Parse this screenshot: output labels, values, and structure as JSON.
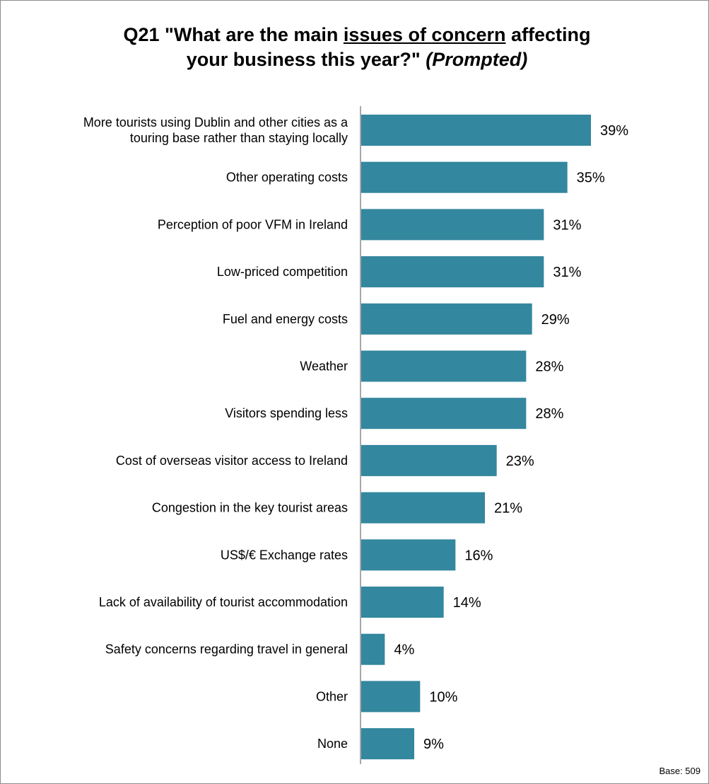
{
  "chart_data": {
    "type": "bar",
    "orientation": "horizontal",
    "title": {
      "part1": "Q21 \"What are the main ",
      "part2": "issues of concern",
      "part3": " affecting",
      "line2_plain": "your business this year?\" ",
      "line2_italic": "(Prompted)"
    },
    "bar_color": "#33879e",
    "xlim": [
      0,
      39
    ],
    "grid": false,
    "categories": [
      [
        "More tourists using Dublin and other cities as a",
        "touring base rather than staying locally"
      ],
      [
        "Other operating costs"
      ],
      [
        "Perception of poor VFM in Ireland"
      ],
      [
        "Low-priced competition"
      ],
      [
        "Fuel and energy costs"
      ],
      [
        "Weather"
      ],
      [
        "Visitors spending less"
      ],
      [
        "Cost of overseas visitor access to Ireland"
      ],
      [
        "Congestion in the key tourist areas"
      ],
      [
        "US$/€ Exchange rates"
      ],
      [
        "Lack of availability of tourist accommodation"
      ],
      [
        "Safety concerns regarding travel in general"
      ],
      [
        "Other"
      ],
      [
        "None"
      ]
    ],
    "values": [
      39,
      35,
      31,
      31,
      29,
      28,
      28,
      23,
      21,
      16,
      14,
      4,
      10,
      9
    ],
    "value_labels": [
      "39%",
      "35%",
      "31%",
      "31%",
      "29%",
      "28%",
      "28%",
      "23%",
      "21%",
      "16%",
      "14%",
      "4%",
      "10%",
      "9%"
    ]
  },
  "footer": {
    "base_note": "Base: 509"
  }
}
